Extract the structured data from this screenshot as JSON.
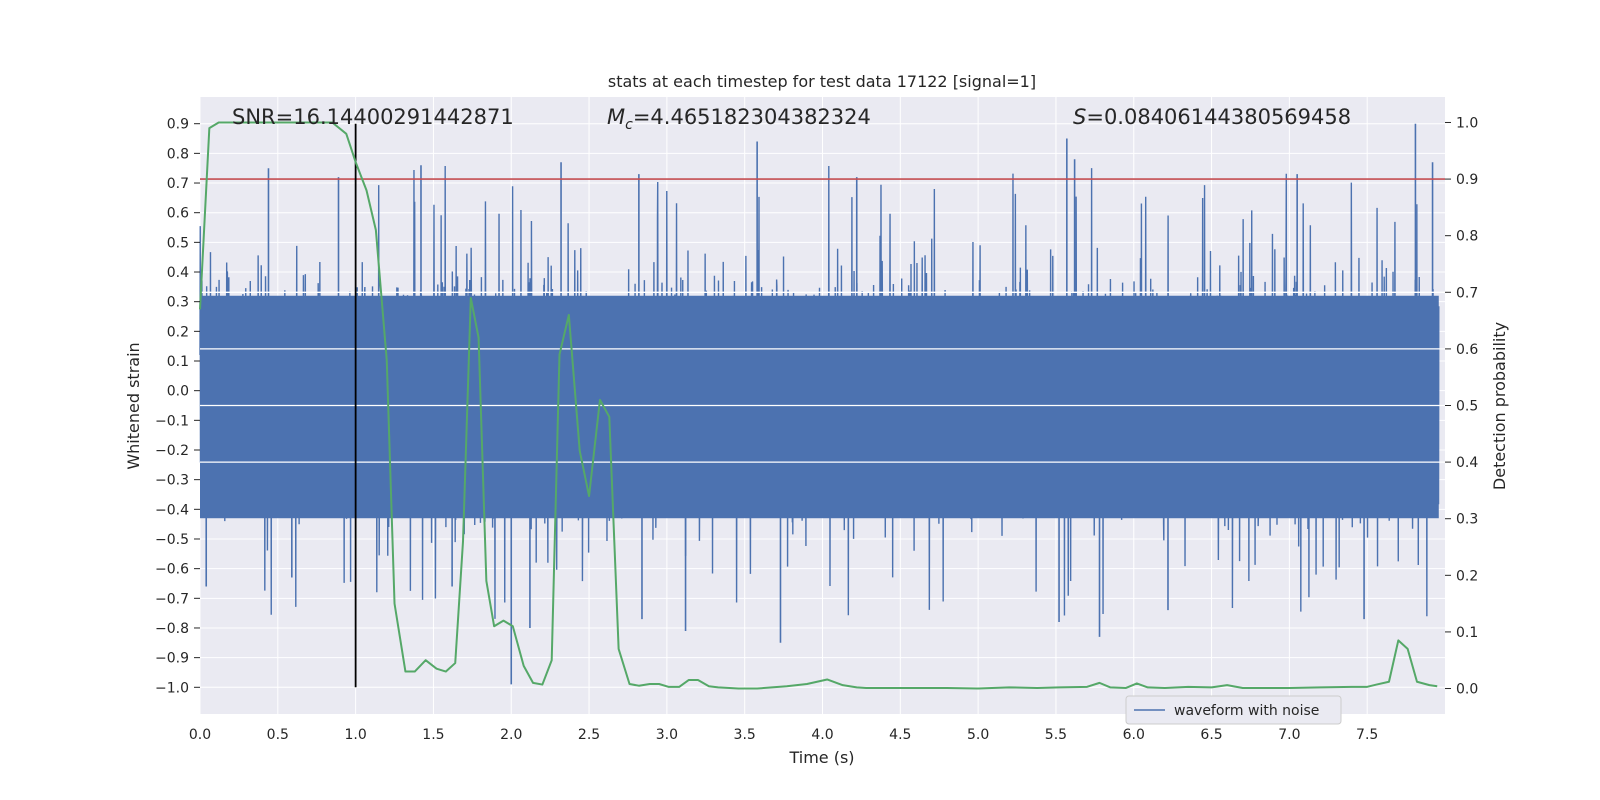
{
  "chart_data": {
    "type": "line",
    "title": "stats at each timestep for test data 17122 [signal=1]",
    "xlabel": "Time (s)",
    "ylabel_left": "Whitened strain",
    "ylabel_right": "Detection probability",
    "xlim": [
      0.0,
      8.0
    ],
    "ylim_left": [
      -1.09,
      0.99
    ],
    "ylim_right": [
      -0.045,
      1.045
    ],
    "x_ticks": [
      "0.0",
      "0.5",
      "1.0",
      "1.5",
      "2.0",
      "2.5",
      "3.0",
      "3.5",
      "4.0",
      "4.5",
      "5.0",
      "5.5",
      "6.0",
      "6.5",
      "7.0",
      "7.5"
    ],
    "y_left_ticks": [
      "0.9",
      "0.8",
      "0.7",
      "0.6",
      "0.5",
      "0.4",
      "0.3",
      "0.2",
      "0.1",
      "0.0",
      "−0.1",
      "−0.2",
      "−0.3",
      "−0.4",
      "−0.5",
      "−0.6",
      "−0.7",
      "−0.8",
      "−0.9",
      "−1.0"
    ],
    "y_right_ticks": [
      "1.0",
      "0.9",
      "0.8",
      "0.7",
      "0.6",
      "0.5",
      "0.4",
      "0.3",
      "0.2",
      "0.1",
      "0.0"
    ],
    "annotations": {
      "snr": "SNR=16.14400291442871",
      "mc_symbol": "M",
      "mc_sub": "c",
      "mc_value": "=4.465182304382324",
      "s_symbol": "S",
      "s_value": "=0.08406144380569458"
    },
    "threshold_right": 0.9,
    "event_time": 1.0,
    "legend": {
      "label": "waveform with noise",
      "location": "lower-right"
    },
    "colors": {
      "background": "#eaeaf2",
      "waveform": "#4c72b0",
      "probability": "#55a868",
      "threshold": "#c44e52",
      "event_line": "#000000",
      "grid": "#ffffff"
    },
    "waveform": {
      "description": "whitened strain noise",
      "duration": 7.96,
      "core_range": [
        -0.43,
        0.32
      ],
      "spike_max": 0.9,
      "spike_min": -1.0,
      "peaks_positive": [
        [
          0.44,
          0.75
        ],
        [
          0.89,
          0.72
        ],
        [
          1.42,
          0.76
        ],
        [
          2.32,
          0.77
        ],
        [
          2.82,
          0.73
        ],
        [
          3.58,
          0.84
        ],
        [
          4.22,
          0.72
        ],
        [
          5.57,
          0.85
        ],
        [
          5.62,
          0.78
        ],
        [
          7.05,
          0.73
        ],
        [
          7.81,
          0.9
        ],
        [
          7.92,
          0.77
        ]
      ],
      "peaks_negative": [
        [
          0.04,
          -0.66
        ],
        [
          0.59,
          -0.63
        ],
        [
          1.62,
          -0.66
        ],
        [
          2.0,
          -0.99
        ],
        [
          2.12,
          -0.8
        ],
        [
          2.84,
          -0.77
        ],
        [
          3.12,
          -0.81
        ],
        [
          3.73,
          -0.85
        ],
        [
          5.52,
          -0.78
        ],
        [
          5.78,
          -0.83
        ],
        [
          6.22,
          -0.74
        ],
        [
          7.48,
          -0.77
        ]
      ]
    },
    "probability": {
      "x": [
        0.0,
        0.06,
        0.12,
        0.2,
        0.4,
        0.6,
        0.85,
        0.94,
        1.0,
        1.07,
        1.13,
        1.2,
        1.25,
        1.32,
        1.38,
        1.45,
        1.52,
        1.58,
        1.64,
        1.69,
        1.74,
        1.79,
        1.84,
        1.89,
        1.95,
        2.01,
        2.08,
        2.14,
        2.2,
        2.26,
        2.31,
        2.37,
        2.44,
        2.5,
        2.57,
        2.63,
        2.69,
        2.76,
        2.82,
        2.89,
        2.95,
        3.01,
        3.08,
        3.14,
        3.2,
        3.27,
        3.33,
        3.46,
        3.58,
        3.77,
        3.9,
        4.03,
        4.13,
        4.22,
        4.28,
        4.5,
        4.8,
        5.0,
        5.2,
        5.38,
        5.52,
        5.7,
        5.78,
        5.85,
        5.95,
        6.02,
        6.09,
        6.2,
        6.35,
        6.5,
        6.6,
        6.7,
        7.0,
        7.2,
        7.4,
        7.5,
        7.56,
        7.64,
        7.7,
        7.76,
        7.82,
        7.9,
        7.95
      ],
      "y": [
        0.67,
        0.99,
        1.0,
        1.0,
        1.0,
        1.0,
        1.0,
        0.98,
        0.93,
        0.88,
        0.81,
        0.58,
        0.15,
        0.03,
        0.03,
        0.05,
        0.035,
        0.03,
        0.045,
        0.26,
        0.69,
        0.62,
        0.19,
        0.11,
        0.12,
        0.11,
        0.04,
        0.01,
        0.007,
        0.05,
        0.59,
        0.66,
        0.42,
        0.34,
        0.51,
        0.48,
        0.07,
        0.008,
        0.005,
        0.008,
        0.008,
        0.003,
        0.003,
        0.015,
        0.015,
        0.004,
        0.002,
        0.0,
        0.0,
        0.004,
        0.008,
        0.016,
        0.006,
        0.002,
        0.001,
        0.001,
        0.001,
        0.0,
        0.002,
        0.001,
        0.002,
        0.003,
        0.01,
        0.002,
        0.001,
        0.009,
        0.002,
        0.001,
        0.003,
        0.002,
        0.006,
        0.001,
        0.001,
        0.002,
        0.003,
        0.003,
        0.007,
        0.012,
        0.085,
        0.07,
        0.012,
        0.006,
        0.004
      ]
    }
  }
}
